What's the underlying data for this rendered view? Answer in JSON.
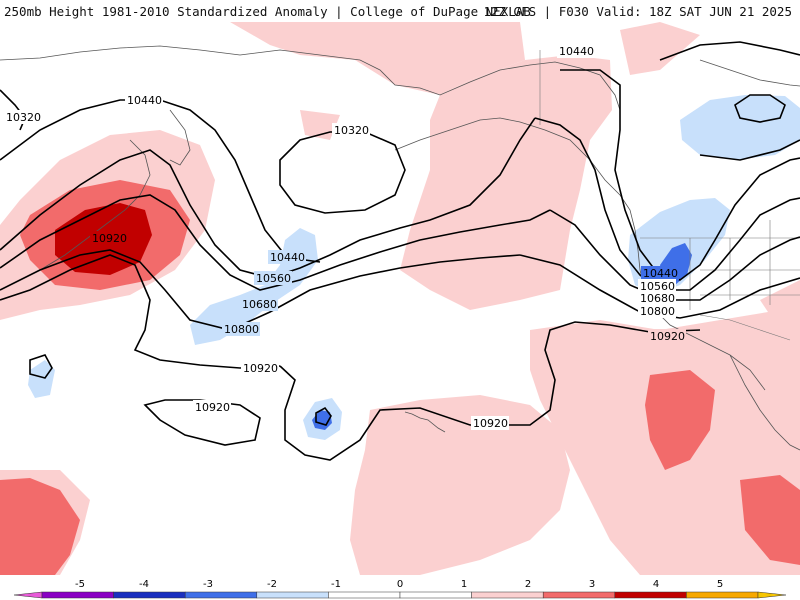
{
  "header": {
    "title": "250mb Height 1981-2010 Standardized Anomaly | College of DuPage NEXLAB",
    "run_info": "12Z GFS | F030 Valid: 18Z SAT JUN 21 2025"
  },
  "contour_labels": [
    "10320",
    "10440",
    "10320",
    "10440",
    "10920",
    "10440",
    "10560",
    "10680",
    "10800",
    "10440",
    "10560",
    "10680",
    "10800",
    "10920",
    "10920",
    "10920",
    "10920"
  ],
  "colorbar": {
    "ticks": [
      "-5",
      "-4",
      "-3",
      "-2",
      "-1",
      "0",
      "1",
      "2",
      "3",
      "4",
      "5"
    ],
    "bins": [
      {
        "from": -5,
        "to": -4,
        "color": "#8a00c4"
      },
      {
        "from": -4,
        "to": -3,
        "color": "#1a2fbf"
      },
      {
        "from": -3,
        "to": -2,
        "color": "#3f6fe8"
      },
      {
        "from": -2,
        "to": -1,
        "color": "#c8e0fb"
      },
      {
        "from": -1,
        "to": 0,
        "color": "#ffffff"
      },
      {
        "from": 0,
        "to": 1,
        "color": "#ffffff"
      },
      {
        "from": 1,
        "to": 2,
        "color": "#fbd0d0"
      },
      {
        "from": 2,
        "to": 3,
        "color": "#f26b6b"
      },
      {
        "from": 3,
        "to": 4,
        "color": "#c10000"
      },
      {
        "from": 4,
        "to": 5,
        "color": "#f7a800"
      }
    ],
    "low_end_color": "#e85ad8",
    "high_end_color": "#f7c600"
  },
  "colors": {
    "anom_pos_light": "#fbd0d0",
    "anom_pos_mid": "#f26b6b",
    "anom_pos_strong": "#c10000",
    "anom_neg_light": "#c8e0fb",
    "anom_neg_mid": "#3f6fe8",
    "contour": "#000000",
    "coastline": "#555555"
  }
}
